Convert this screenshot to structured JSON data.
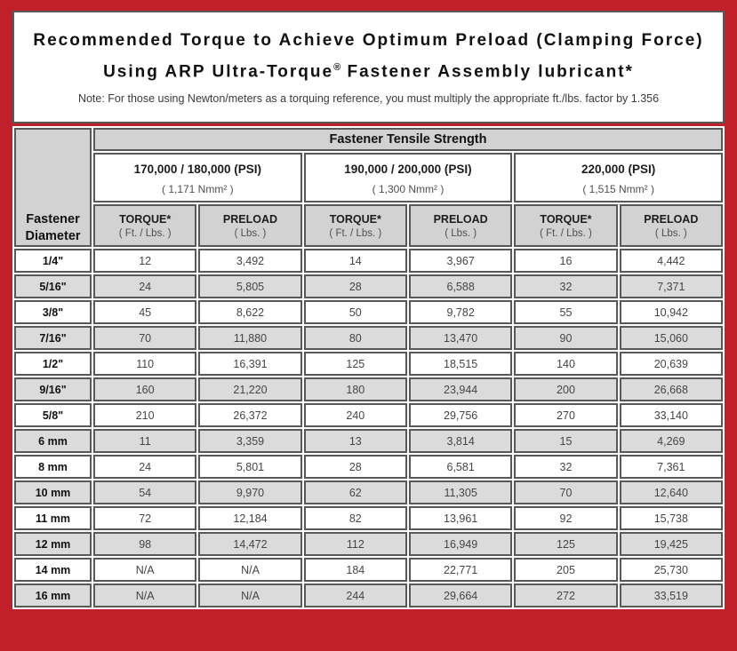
{
  "title": {
    "line1": "Recommended Torque to Achieve Optimum Preload (Clamping Force)",
    "line2_pre": "Using ARP Ultra-Torque",
    "line2_sup": "®",
    "line2_post": " Fastener Assembly lubricant*"
  },
  "note": "Note: For those using Newton/meters as a torquing reference, you must multiply the appropriate ft./lbs. factor by 1.356",
  "colors": {
    "frame_red": "#C1202B",
    "header_gray": "#D2D2D2",
    "alt_row_gray": "#DBDBDB",
    "cell_border_gray": "#58585A"
  },
  "table": {
    "tensile_header": "Fastener Tensile Strength",
    "diameter_header_line1": "Fastener",
    "diameter_header_line2": "Diameter",
    "strength_groups": [
      {
        "psi": "170,000 / 180,000 (PSI)",
        "nmm": "( 1,171 Nmm² )"
      },
      {
        "psi": "190,000 / 200,000 (PSI)",
        "nmm": "( 1,300 Nmm² )"
      },
      {
        "psi": "220,000 (PSI)",
        "nmm": "( 1,515 Nmm² )"
      }
    ],
    "col_headers": [
      {
        "label": "TORQUE*",
        "unit": "( Ft. / Lbs. )"
      },
      {
        "label": "PRELOAD",
        "unit": "( Lbs. )"
      }
    ],
    "rows": [
      [
        "1/4\"",
        "12",
        "3,492",
        "14",
        "3,967",
        "16",
        "4,442"
      ],
      [
        "5/16\"",
        "24",
        "5,805",
        "28",
        "6,588",
        "32",
        "7,371"
      ],
      [
        "3/8\"",
        "45",
        "8,622",
        "50",
        "9,782",
        "55",
        "10,942"
      ],
      [
        "7/16\"",
        "70",
        "11,880",
        "80",
        "13,470",
        "90",
        "15,060"
      ],
      [
        "1/2\"",
        "110",
        "16,391",
        "125",
        "18,515",
        "140",
        "20,639"
      ],
      [
        "9/16\"",
        "160",
        "21,220",
        "180",
        "23,944",
        "200",
        "26,668"
      ],
      [
        "5/8\"",
        "210",
        "26,372",
        "240",
        "29,756",
        "270",
        "33,140"
      ],
      [
        "6 mm",
        "11",
        "3,359",
        "13",
        "3,814",
        "15",
        "4,269"
      ],
      [
        "8 mm",
        "24",
        "5,801",
        "28",
        "6,581",
        "32",
        "7,361"
      ],
      [
        "10 mm",
        "54",
        "9,970",
        "62",
        "11,305",
        "70",
        "12,640"
      ],
      [
        "11 mm",
        "72",
        "12,184",
        "82",
        "13,961",
        "92",
        "15,738"
      ],
      [
        "12 mm",
        "98",
        "14,472",
        "112",
        "16,949",
        "125",
        "19,425"
      ],
      [
        "14 mm",
        "N/A",
        "N/A",
        "184",
        "22,771",
        "205",
        "25,730"
      ],
      [
        "16 mm",
        "N/A",
        "N/A",
        "244",
        "29,664",
        "272",
        "33,519"
      ]
    ]
  }
}
